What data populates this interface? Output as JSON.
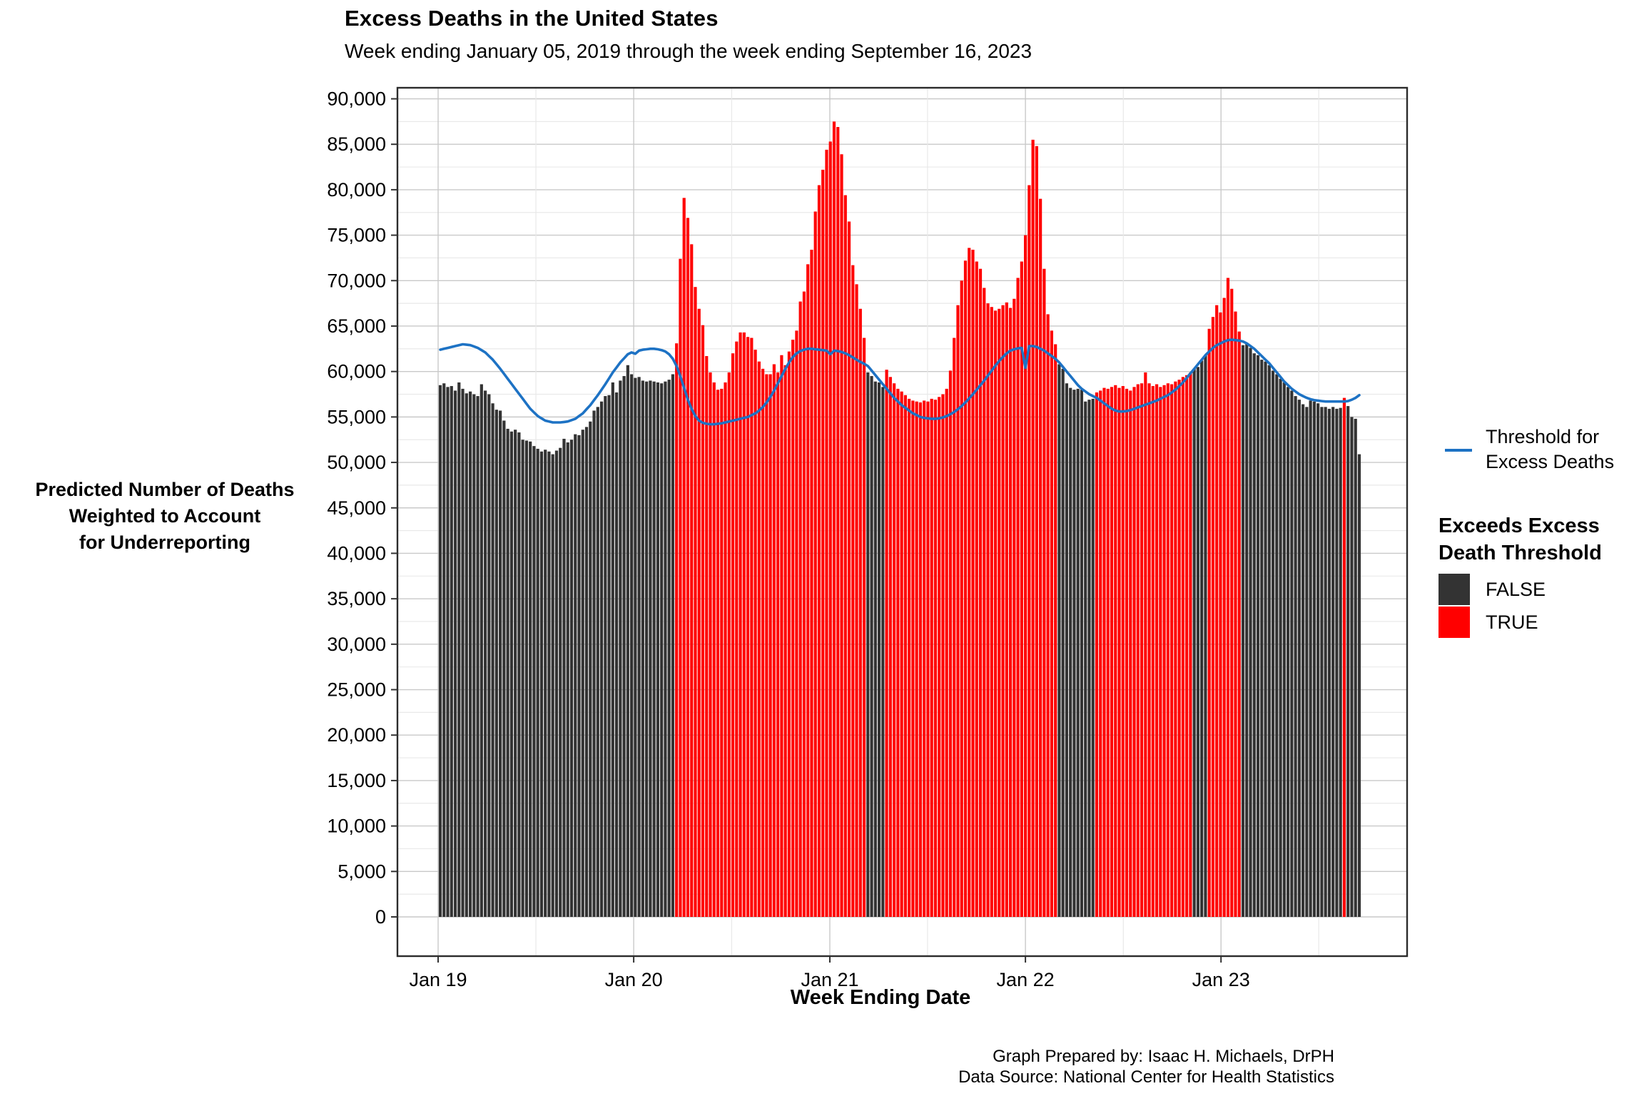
{
  "title": "Excess Deaths in the United States",
  "subtitle": "Week ending January 05, 2019 through the week ending September 16, 2023",
  "y_axis": {
    "title_lines": [
      "Predicted Number of Deaths",
      "Weighted to Account",
      "for Underreporting"
    ],
    "tick_values": [
      0,
      5000,
      10000,
      15000,
      20000,
      25000,
      30000,
      35000,
      40000,
      45000,
      50000,
      55000,
      60000,
      65000,
      70000,
      75000,
      80000,
      85000,
      90000
    ]
  },
  "x_axis": {
    "title": "Week Ending Date",
    "ticks": [
      {
        "label": "Jan 19",
        "week": -0.57
      },
      {
        "label": "Jan 20",
        "week": 51.57
      },
      {
        "label": "Jan 21",
        "week": 103.86
      },
      {
        "label": "Jan 22",
        "week": 156.0
      },
      {
        "label": "Jan 23",
        "week": 208.14
      }
    ],
    "minor_weeks": [
      25.5,
      77.7,
      129.9,
      182.1,
      234.2
    ]
  },
  "legend": {
    "line_label_lines": [
      "Threshold for",
      "Excess Deaths"
    ],
    "heading_lines": [
      "Exceeds Excess",
      "Death Threshold"
    ],
    "items": [
      {
        "label": "FALSE",
        "color": "#333333"
      },
      {
        "label": "TRUE",
        "color": "#FF0000"
      }
    ]
  },
  "caption_lines": [
    "Graph Prepared by: Isaac H. Michaels, DrPH",
    "Data Source: National Center for Health Statistics"
  ],
  "colors": {
    "bar_false": "#333333",
    "bar_true": "#FF0000",
    "threshold_blue": "#1D72C4",
    "grid_major": "#c9c9c9",
    "grid_minor": "#e9e9e9",
    "panel_border": "#2b2b2b"
  },
  "chart_data": {
    "type": "bar",
    "x_unit": "week",
    "n_weeks": 246,
    "first_week_label": "January 05, 2019",
    "last_week_label": "September 16, 2023",
    "ylim": [
      0,
      90000
    ],
    "grid": true,
    "legend_position": "right",
    "color_rule": "bar is TRUE (red) when value exceeds threshold, else FALSE (dark gray)",
    "series": [
      {
        "name": "Predicted Number of Deaths Weighted to Account for Underreporting",
        "values": [
          58500,
          58700,
          58300,
          58400,
          57900,
          58800,
          58100,
          57600,
          57800,
          57500,
          57300,
          58600,
          57900,
          57500,
          56500,
          55800,
          55700,
          54600,
          53700,
          53400,
          53600,
          53300,
          52500,
          52400,
          52300,
          51800,
          51500,
          51200,
          51400,
          51200,
          50900,
          51300,
          51600,
          52600,
          52200,
          52500,
          53100,
          53000,
          53600,
          53900,
          54500,
          55700,
          56100,
          56700,
          57300,
          57400,
          58800,
          57700,
          59000,
          59500,
          60700,
          59700,
          59300,
          59400,
          59000,
          58900,
          59000,
          58900,
          58800,
          58700,
          58900,
          59100,
          59700,
          63100,
          72400,
          79100,
          76900,
          74000,
          69300,
          66900,
          65100,
          61700,
          59900,
          58800,
          58000,
          58100,
          58800,
          59900,
          62000,
          63300,
          64300,
          64300,
          63800,
          63700,
          62400,
          61100,
          60300,
          59700,
          59700,
          60800,
          59900,
          61800,
          60700,
          62200,
          63500,
          64500,
          67700,
          68800,
          71800,
          73400,
          77600,
          80500,
          82200,
          84400,
          85300,
          87500,
          86900,
          83900,
          79400,
          76500,
          71700,
          69600,
          66900,
          63700,
          59900,
          59500,
          58900,
          58800,
          58300,
          60200,
          59400,
          58700,
          58100,
          57800,
          57400,
          57000,
          56800,
          56700,
          56600,
          56800,
          56700,
          57000,
          56900,
          57200,
          57500,
          58100,
          60100,
          63700,
          67300,
          70000,
          72200,
          73600,
          73400,
          72100,
          71300,
          69200,
          67500,
          67100,
          66700,
          66900,
          67300,
          67600,
          67000,
          68000,
          70300,
          72100,
          75000,
          80500,
          85500,
          84800,
          79000,
          71300,
          66300,
          64500,
          63000,
          60800,
          60300,
          58700,
          58200,
          58000,
          58100,
          58000,
          56700,
          56900,
          57000,
          57700,
          57900,
          58200,
          58100,
          58300,
          58500,
          58200,
          58400,
          58100,
          57900,
          58300,
          58600,
          58700,
          59900,
          58700,
          58400,
          58600,
          58300,
          58500,
          58700,
          58600,
          58900,
          59100,
          59400,
          59600,
          59900,
          60300,
          60500,
          61200,
          61800,
          64700,
          66000,
          67300,
          66500,
          68100,
          70300,
          69100,
          66600,
          64400,
          62900,
          63000,
          62600,
          62000,
          61800,
          61300,
          61100,
          60700,
          60100,
          59700,
          59200,
          58800,
          58300,
          57900,
          57300,
          56900,
          56400,
          56100,
          56800,
          56700,
          56500,
          56100,
          56100,
          55900,
          56100,
          55900,
          56000,
          57100,
          56200,
          55000,
          54800,
          50900
        ]
      },
      {
        "name": "Threshold for Excess Deaths",
        "values": [
          62400,
          62500,
          62600,
          62700,
          62800,
          62900,
          63000,
          62950,
          62900,
          62750,
          62600,
          62350,
          62100,
          61700,
          61300,
          60800,
          60300,
          59750,
          59200,
          58650,
          58100,
          57550,
          57000,
          56450,
          55900,
          55500,
          55100,
          54850,
          54600,
          54500,
          54400,
          54400,
          54400,
          54450,
          54500,
          54650,
          54800,
          55100,
          55400,
          55850,
          56300,
          56850,
          57400,
          58000,
          58600,
          59250,
          59900,
          60450,
          61000,
          61450,
          61900,
          62100,
          61950,
          62300,
          62400,
          62450,
          62500,
          62500,
          62450,
          62350,
          62200,
          61900,
          61400,
          60600,
          59500,
          58200,
          56900,
          55900,
          55100,
          54600,
          54350,
          54250,
          54200,
          54200,
          54250,
          54300,
          54400,
          54500,
          54600,
          54700,
          54800,
          54900,
          55000,
          55200,
          55400,
          55700,
          56100,
          56600,
          57200,
          57900,
          58700,
          59500,
          60300,
          61000,
          61600,
          62000,
          62250,
          62400,
          62500,
          62500,
          62450,
          62400,
          62350,
          62300,
          61900,
          62300,
          62250,
          62150,
          62000,
          61800,
          61550,
          61300,
          61050,
          60850,
          60600,
          60100,
          59600,
          59100,
          58600,
          58100,
          57600,
          57100,
          56700,
          56300,
          56000,
          55700,
          55400,
          55200,
          55000,
          54900,
          54850,
          54800,
          54800,
          54850,
          54950,
          55100,
          55300,
          55550,
          55850,
          56200,
          56600,
          57050,
          57500,
          58000,
          58500,
          59000,
          59550,
          60100,
          60650,
          61150,
          61600,
          62000,
          62300,
          62450,
          62550,
          62600,
          60400,
          62800,
          62800,
          62700,
          62500,
          62300,
          62000,
          61700,
          61400,
          61000,
          60500,
          60000,
          59500,
          59000,
          58500,
          58100,
          57800,
          57500,
          57300,
          57100,
          56800,
          56500,
          56200,
          55900,
          55700,
          55600,
          55600,
          55650,
          55750,
          55900,
          56050,
          56200,
          56350,
          56500,
          56650,
          56800,
          57000,
          57200,
          57400,
          57700,
          58000,
          58400,
          58800,
          59300,
          59800,
          60300,
          60800,
          61300,
          61800,
          62200,
          62600,
          62900,
          63100,
          63300,
          63450,
          63500,
          63450,
          63400,
          63300,
          63100,
          62800,
          62500,
          62100,
          61700,
          61300,
          60900,
          60400,
          59900,
          59400,
          58900,
          58500,
          58100,
          57800,
          57500,
          57300,
          57100,
          56950,
          56850,
          56800,
          56750,
          56700,
          56700,
          56700,
          56700,
          56700,
          56700,
          56750,
          56900,
          57100,
          57400
        ]
      }
    ]
  }
}
